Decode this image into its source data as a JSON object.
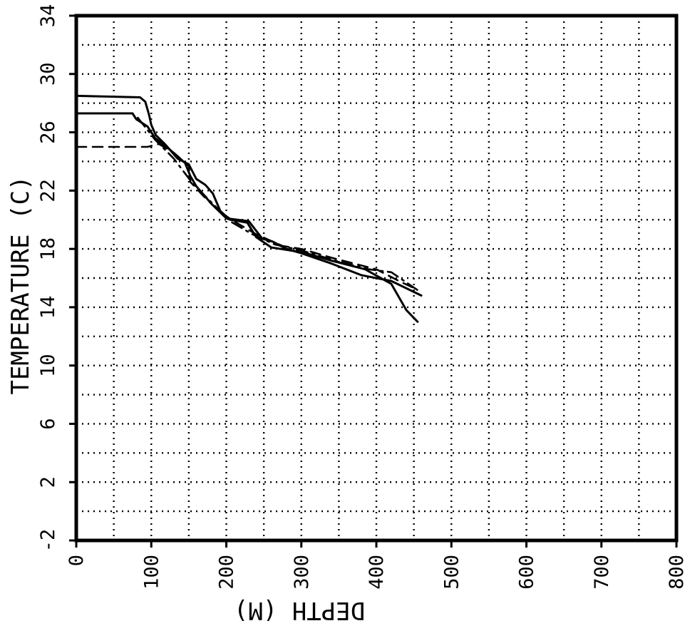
{
  "chart_data": {
    "type": "line",
    "xlabel": "DEPTH (M)",
    "ylabel": "TEMPERATURE (C)",
    "xlim": [
      0,
      800
    ],
    "ylim": [
      -2,
      34
    ],
    "x_ticks": [
      "0",
      "100",
      "200",
      "300",
      "400",
      "500",
      "600",
      "700",
      "800"
    ],
    "y_ticks": [
      "-2",
      "2",
      "6",
      "10",
      "14",
      "18",
      "22",
      "26",
      "30",
      "34"
    ],
    "x_grid_step": 50,
    "y_grid_step": 2,
    "grid": true,
    "series": [
      {
        "style": "solid",
        "points": [
          [
            0,
            28.5
          ],
          [
            85,
            28.4
          ],
          [
            92,
            28.1
          ],
          [
            97,
            27.2
          ],
          [
            100,
            26.5
          ],
          [
            106,
            25.8
          ],
          [
            118,
            25.2
          ],
          [
            135,
            24.2
          ],
          [
            150,
            23.8
          ],
          [
            160,
            22.8
          ],
          [
            172,
            22.4
          ],
          [
            182,
            21.8
          ],
          [
            192,
            20.6
          ],
          [
            205,
            20.0
          ],
          [
            228,
            19.8
          ],
          [
            240,
            18.8
          ],
          [
            260,
            18.1
          ],
          [
            285,
            17.9
          ],
          [
            300,
            17.8
          ],
          [
            340,
            17.2
          ],
          [
            385,
            16.6
          ],
          [
            420,
            15.6
          ],
          [
            440,
            13.8
          ],
          [
            455,
            13.0
          ]
        ]
      },
      {
        "style": "solid",
        "points": [
          [
            0,
            27.3
          ],
          [
            75,
            27.3
          ],
          [
            80,
            26.9
          ],
          [
            95,
            26.4
          ],
          [
            105,
            25.6
          ],
          [
            125,
            24.8
          ],
          [
            145,
            23.9
          ],
          [
            152,
            23.0
          ],
          [
            160,
            22.3
          ],
          [
            180,
            21.1
          ],
          [
            200,
            20.1
          ],
          [
            230,
            19.9
          ],
          [
            248,
            18.7
          ],
          [
            262,
            18.5
          ],
          [
            280,
            18.0
          ],
          [
            300,
            17.7
          ],
          [
            340,
            17.0
          ],
          [
            380,
            16.2
          ],
          [
            420,
            15.8
          ],
          [
            460,
            14.8
          ]
        ]
      },
      {
        "style": "dashed",
        "points": [
          [
            0,
            25.0
          ],
          [
            95,
            25.0
          ],
          [
            110,
            25.2
          ],
          [
            130,
            24.6
          ],
          [
            150,
            23.7
          ],
          [
            152,
            22.6
          ],
          [
            170,
            21.6
          ],
          [
            190,
            20.6
          ],
          [
            210,
            19.9
          ],
          [
            240,
            19.0
          ],
          [
            275,
            18.2
          ],
          [
            300,
            18.0
          ],
          [
            340,
            17.4
          ],
          [
            370,
            17.0
          ],
          [
            400,
            16.6
          ],
          [
            430,
            15.8
          ],
          [
            455,
            15.2
          ]
        ]
      },
      {
        "style": "dash-dot",
        "points": [
          [
            82,
            27.0
          ],
          [
            105,
            25.5
          ],
          [
            130,
            24.2
          ],
          [
            155,
            22.5
          ],
          [
            180,
            21.2
          ],
          [
            205,
            19.9
          ],
          [
            235,
            19.0
          ],
          [
            265,
            18.3
          ],
          [
            300,
            17.9
          ],
          [
            345,
            17.2
          ],
          [
            390,
            16.6
          ],
          [
            420,
            16.4
          ],
          [
            460,
            15.0
          ]
        ]
      }
    ]
  }
}
